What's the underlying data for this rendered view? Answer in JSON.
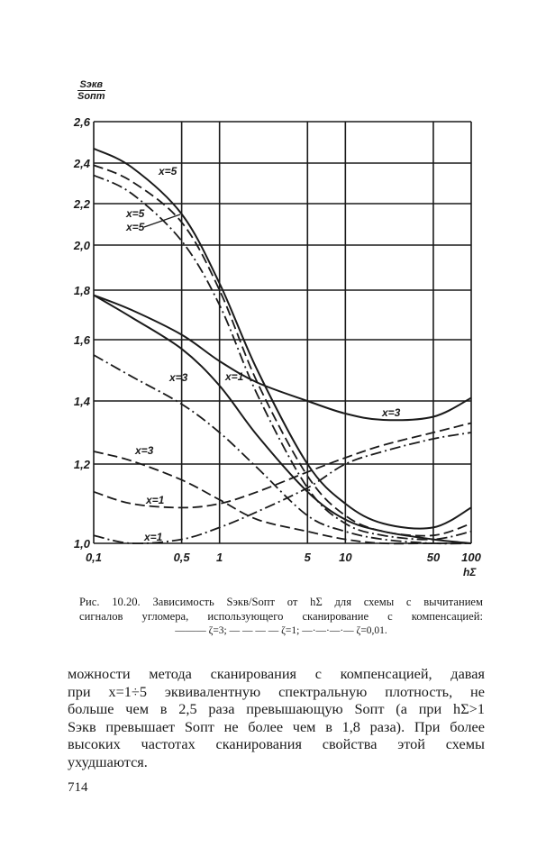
{
  "chart_data": {
    "type": "line",
    "title": "",
    "xlabel": "h_Σ",
    "ylabel_numerator": "S_экв",
    "ylabel_denominator": "S_опт",
    "x_scale": "log",
    "xlim": [
      0.1,
      100
    ],
    "ylim": [
      1.0,
      2.6
    ],
    "grid": true,
    "x_ticks": [
      0.1,
      0.5,
      1,
      5,
      10,
      50,
      100
    ],
    "x_tick_labels": [
      "0,1",
      "0,5",
      "1",
      "5",
      "10",
      "50",
      "100"
    ],
    "y_ticks": [
      1.0,
      1.2,
      1.4,
      1.6,
      1.8,
      2.0,
      2.2,
      2.4,
      2.6
    ],
    "y_tick_labels": [
      "1,0",
      "1,2",
      "1,4",
      "1,6",
      "1,8",
      "2,0",
      "2,2",
      "2,4",
      "2,6"
    ],
    "x": [
      0.1,
      0.2,
      0.5,
      1,
      2,
      5,
      10,
      20,
      50,
      100
    ],
    "series": [
      {
        "name": "x=5, ζ=3",
        "style": "solid",
        "values": [
          2.47,
          2.38,
          2.15,
          1.83,
          1.5,
          1.2,
          1.1,
          1.05,
          1.04,
          1.09
        ]
      },
      {
        "name": "x=5, ζ=1",
        "style": "dashed",
        "values": [
          2.39,
          2.31,
          2.11,
          1.8,
          1.46,
          1.17,
          1.07,
          1.03,
          1.02,
          1.05
        ]
      },
      {
        "name": "x=5, ζ=0,01",
        "style": "dashdot",
        "values": [
          2.34,
          2.25,
          2.02,
          1.74,
          1.42,
          1.14,
          1.05,
          1.02,
          1.01,
          1.03
        ]
      },
      {
        "name": "x=3, ζ=3",
        "style": "solid",
        "values": [
          1.78,
          1.72,
          1.62,
          1.53,
          1.46,
          1.4,
          1.36,
          1.34,
          1.35,
          1.41
        ]
      },
      {
        "name": "x=1, ζ=3",
        "style": "solid",
        "values": [
          1.78,
          1.69,
          1.57,
          1.45,
          1.29,
          1.13,
          1.06,
          1.03,
          1.01,
          1.0
        ]
      },
      {
        "name": "x=3, ζ=0,01",
        "style": "dashdot",
        "values": [
          1.55,
          1.48,
          1.39,
          1.3,
          1.19,
          1.07,
          1.03,
          1.01,
          1.0,
          1.0
        ]
      },
      {
        "name": "x=3, ζ=1",
        "style": "dashed",
        "values": [
          1.24,
          1.21,
          1.16,
          1.11,
          1.06,
          1.03,
          1.01,
          1.0,
          1.0,
          1.0
        ]
      },
      {
        "name": "x=1, ζ=1",
        "style": "dashed",
        "values": [
          1.13,
          1.1,
          1.09,
          1.1,
          1.13,
          1.18,
          1.22,
          1.26,
          1.3,
          1.33
        ]
      },
      {
        "name": "x=1, ζ=0,01",
        "style": "dashdot",
        "values": [
          1.02,
          1.0,
          1.01,
          1.04,
          1.08,
          1.14,
          1.2,
          1.24,
          1.28,
          1.3
        ]
      }
    ],
    "annotations": [
      "x=5",
      "x=5",
      "x=5",
      "x=3",
      "x=1",
      "x=3",
      "x=3",
      "x=1",
      "x=1"
    ],
    "legend": [
      {
        "style": "solid",
        "label": "ζ=3;"
      },
      {
        "style": "dashed",
        "label": "ζ=1;"
      },
      {
        "style": "dashdot",
        "label": "ζ=0,01."
      }
    ]
  },
  "axis": {
    "y_num": "Sэкв",
    "y_den": "Sопт",
    "x_title": "hΣ"
  },
  "caption": {
    "line1": "Рис. 10.20. Зависимость Sэкв/Sопт от hΣ для схемы с вычитанием",
    "line2": "сигналов угломера, использующего сканирование с компенсацией:",
    "legend_line": "——— ζ=3; — — — — ζ=1; —·—·—·— ζ=0,01."
  },
  "body": {
    "lines": [
      "можности метода сканирования с компенсацией, давая",
      "при x=1÷5 эквивалентную спектральную плотность, не",
      "больше чем в 2,5 раза превышающую Sопт (а при hΣ>1",
      "Sэкв превышает Sопт не более чем в 1,8 раза). При более",
      "высоких частотах сканирования свойства этой схемы",
      "ухудшаются."
    ]
  },
  "page_number": "714"
}
